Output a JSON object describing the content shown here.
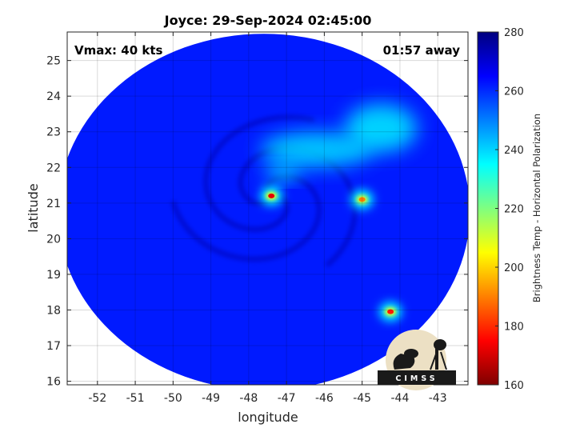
{
  "chart_data": {
    "type": "heatmap",
    "title": "Joyce: 29-Sep-2024 02:45:00",
    "xlabel": "longitude",
    "ylabel": "latitude",
    "xlim": [
      -52.8,
      -42.2
    ],
    "ylim": [
      15.9,
      25.8
    ],
    "x_ticks": [
      -52,
      -51,
      -50,
      -49,
      -48,
      -47,
      -46,
      -45,
      -44,
      -43
    ],
    "y_ticks": [
      16,
      17,
      18,
      19,
      20,
      21,
      22,
      23,
      24,
      25
    ],
    "grid": true,
    "annotations": {
      "vmax": "Vmax: 40 kts",
      "time_away": "01:57 away"
    },
    "colorbar": {
      "label": "Brightness Temp - Horizontal Polarization",
      "min": 160,
      "max": 280,
      "ticks": [
        160,
        180,
        200,
        220,
        240,
        260,
        280
      ],
      "colors": [
        "#7f0000",
        "#ff0000",
        "#ffff00",
        "#00ffff",
        "#0000ff",
        "#00007f"
      ],
      "color_stops": [
        0,
        0.125,
        0.375,
        0.625,
        0.875,
        1
      ]
    },
    "swath": {
      "center_lon": -47.6,
      "center_lat": 20.75,
      "radius_lon": 5.45,
      "radius_lat": 5.0,
      "background_value": 262
    },
    "features": [
      {
        "kind": "hot_spot",
        "lon": -47.4,
        "lat": 21.2,
        "value": 172
      },
      {
        "kind": "hot_spot",
        "lon": -45.0,
        "lat": 21.1,
        "value": 190
      },
      {
        "kind": "hot_spot",
        "lon": -44.25,
        "lat": 17.95,
        "value": 178
      },
      {
        "kind": "rainband",
        "lon": -46.2,
        "lat": 22.5,
        "value": 240
      },
      {
        "kind": "rainband",
        "lon": -44.5,
        "lat": 23.1,
        "value": 238
      },
      {
        "kind": "rainband",
        "lon": -47.1,
        "lat": 21.85,
        "value": 238
      }
    ]
  },
  "logo_text": "CIMSS"
}
